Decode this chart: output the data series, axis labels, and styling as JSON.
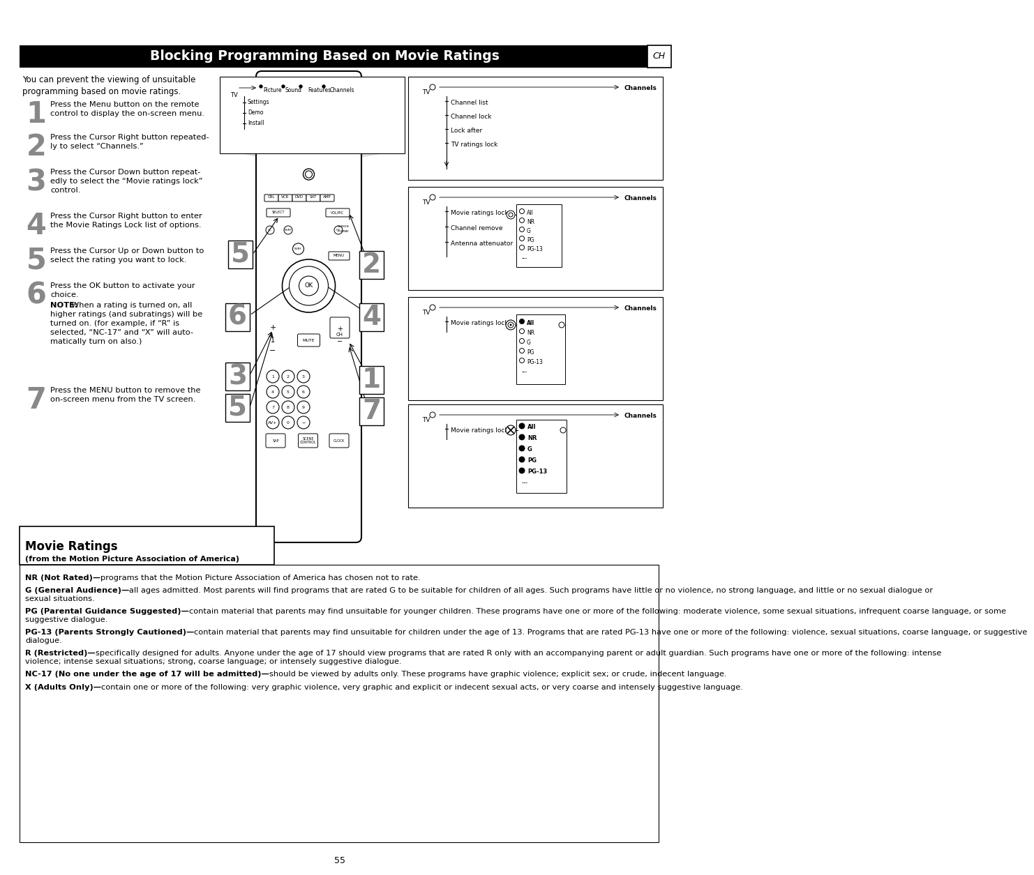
{
  "title": "Blocking Programming Based on Movie Ratings",
  "ch_label": "CH",
  "page_number": "55",
  "bg_color": "#ffffff",
  "intro_text": "You can prevent the viewing of unsuitable\nprogramming based on movie ratings.",
  "step_nums": [
    "1",
    "2",
    "3",
    "4",
    "5",
    "6",
    "7"
  ],
  "step_texts": [
    "Press the Menu button on the remote\ncontrol to display the on-screen menu.",
    "Press the Cursor Right button repeated-\nly to select “Channels.”",
    "Press the Cursor Down button repeat-\nedly to select the “Movie ratings lock”\ncontrol.",
    "Press the Cursor Right button to enter\nthe Movie Ratings Lock list of options.",
    "Press the Cursor Up or Down button to\nselect the rating you want to lock.",
    "Press the OK button to activate your\nchoice.\nNOTE: When a rating is turned on, all\nhigher ratings (and subratings) will be\nturned on. (for example, if “R” is\nselected, “NC-17” and “X” will auto-\nmatically turn on also.)",
    "Press the MENU button to remove the\non-screen menu from the TV screen."
  ],
  "step_y": [
    133,
    180,
    230,
    293,
    343,
    393,
    543
  ],
  "movie_ratings_title": "Movie Ratings",
  "movie_ratings_subtitle": "(from the Motion Picture Association of America)",
  "rating_entries": [
    [
      "NR (Not Rated)—",
      "programs that the Motion Picture Association of America has chosen not to rate."
    ],
    [
      "G (General Audience)—",
      "all ages admitted. Most parents will find programs that are rated G to be suitable for children of all ages. Such programs have little or no violence, no strong language, and little or no sexual dialogue or sexual situations."
    ],
    [
      "PG (Parental Guidance Suggested)—",
      "contain material that parents may find unsuitable for younger children. These programs have one or more of the following: moderate violence, some sexual situations, infrequent coarse language, or some suggestive dialogue."
    ],
    [
      "PG-13 (Parents Strongly Cautioned)—",
      "contain material that parents may find unsuitable for children under the age of 13. Programs that are rated PG-13 have one or more of the following: violence, sexual situations, coarse language, or suggestive dialogue."
    ],
    [
      "R (Restricted)—",
      "specifically designed for adults. Anyone under the age of 17 should view programs that are rated R only with an accompanying parent or adult guardian. Such programs have one or more of the following: intense violence; intense sexual situations; strong, coarse language; or intensely suggestive dialogue."
    ],
    [
      "NC-17 (No one under the age of 17 will be admitted)—",
      "should be viewed by adults only. These programs have graphic violence; explicit sex; or crude, indecent language."
    ],
    [
      "X (Adults Only)—",
      "contain one or more of the following: very graphic violence, very graphic and explicit or indecent sexual acts, or very coarse and intensely suggestive language."
    ]
  ]
}
